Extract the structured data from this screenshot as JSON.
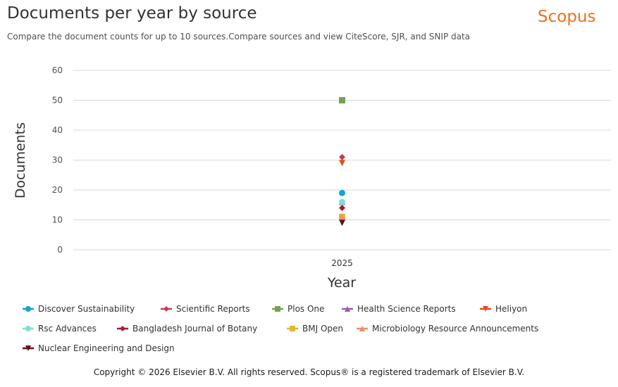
{
  "header": {
    "title": "Documents per year by source",
    "subtitle": "Compare the document counts for up to 10 sources.Compare sources and view CiteScore, SJR, and SNIP data",
    "brand": "Scopus",
    "brand_color": "#e9711c"
  },
  "footer": {
    "copyright": "Copyright © 2026 Elsevier B.V. All rights reserved. Scopus® is a registered trademark of Elsevier B.V."
  },
  "chart_data": {
    "type": "scatter",
    "title": "Documents per year by source",
    "xlabel": "Year",
    "ylabel": "Documents",
    "categories": [
      "2025"
    ],
    "ylim": [
      0,
      60
    ],
    "yticks": [
      0,
      10,
      20,
      30,
      40,
      50,
      60
    ],
    "grid": true,
    "legend_position": "bottom",
    "series": [
      {
        "name": "Discover Sustainability",
        "values": [
          19
        ],
        "color": "#0da6d6",
        "marker": "circle"
      },
      {
        "name": "Scientific Reports",
        "values": [
          31
        ],
        "color": "#c9394b",
        "marker": "diamond"
      },
      {
        "name": "Plos One",
        "values": [
          50
        ],
        "color": "#75a153",
        "marker": "square"
      },
      {
        "name": "Health Science Reports",
        "values": [
          16
        ],
        "color": "#9b59b6",
        "marker": "triangle-up"
      },
      {
        "name": "Heliyon",
        "values": [
          29
        ],
        "color": "#e0501a",
        "marker": "triangle-down"
      },
      {
        "name": "Rsc Advances",
        "values": [
          16
        ],
        "color": "#7fded4",
        "marker": "circle"
      },
      {
        "name": "Bangladesh Journal of Botany",
        "values": [
          14
        ],
        "color": "#a8192e",
        "marker": "diamond"
      },
      {
        "name": "BMJ Open",
        "values": [
          11
        ],
        "color": "#e3b82c",
        "marker": "square"
      },
      {
        "name": "Microbiology Resource Announcements",
        "values": [
          11
        ],
        "color": "#e88f72",
        "marker": "triangle-up"
      },
      {
        "name": "Nuclear Engineering and Design",
        "values": [
          9
        ],
        "color": "#5e1414",
        "marker": "triangle-down"
      }
    ]
  }
}
